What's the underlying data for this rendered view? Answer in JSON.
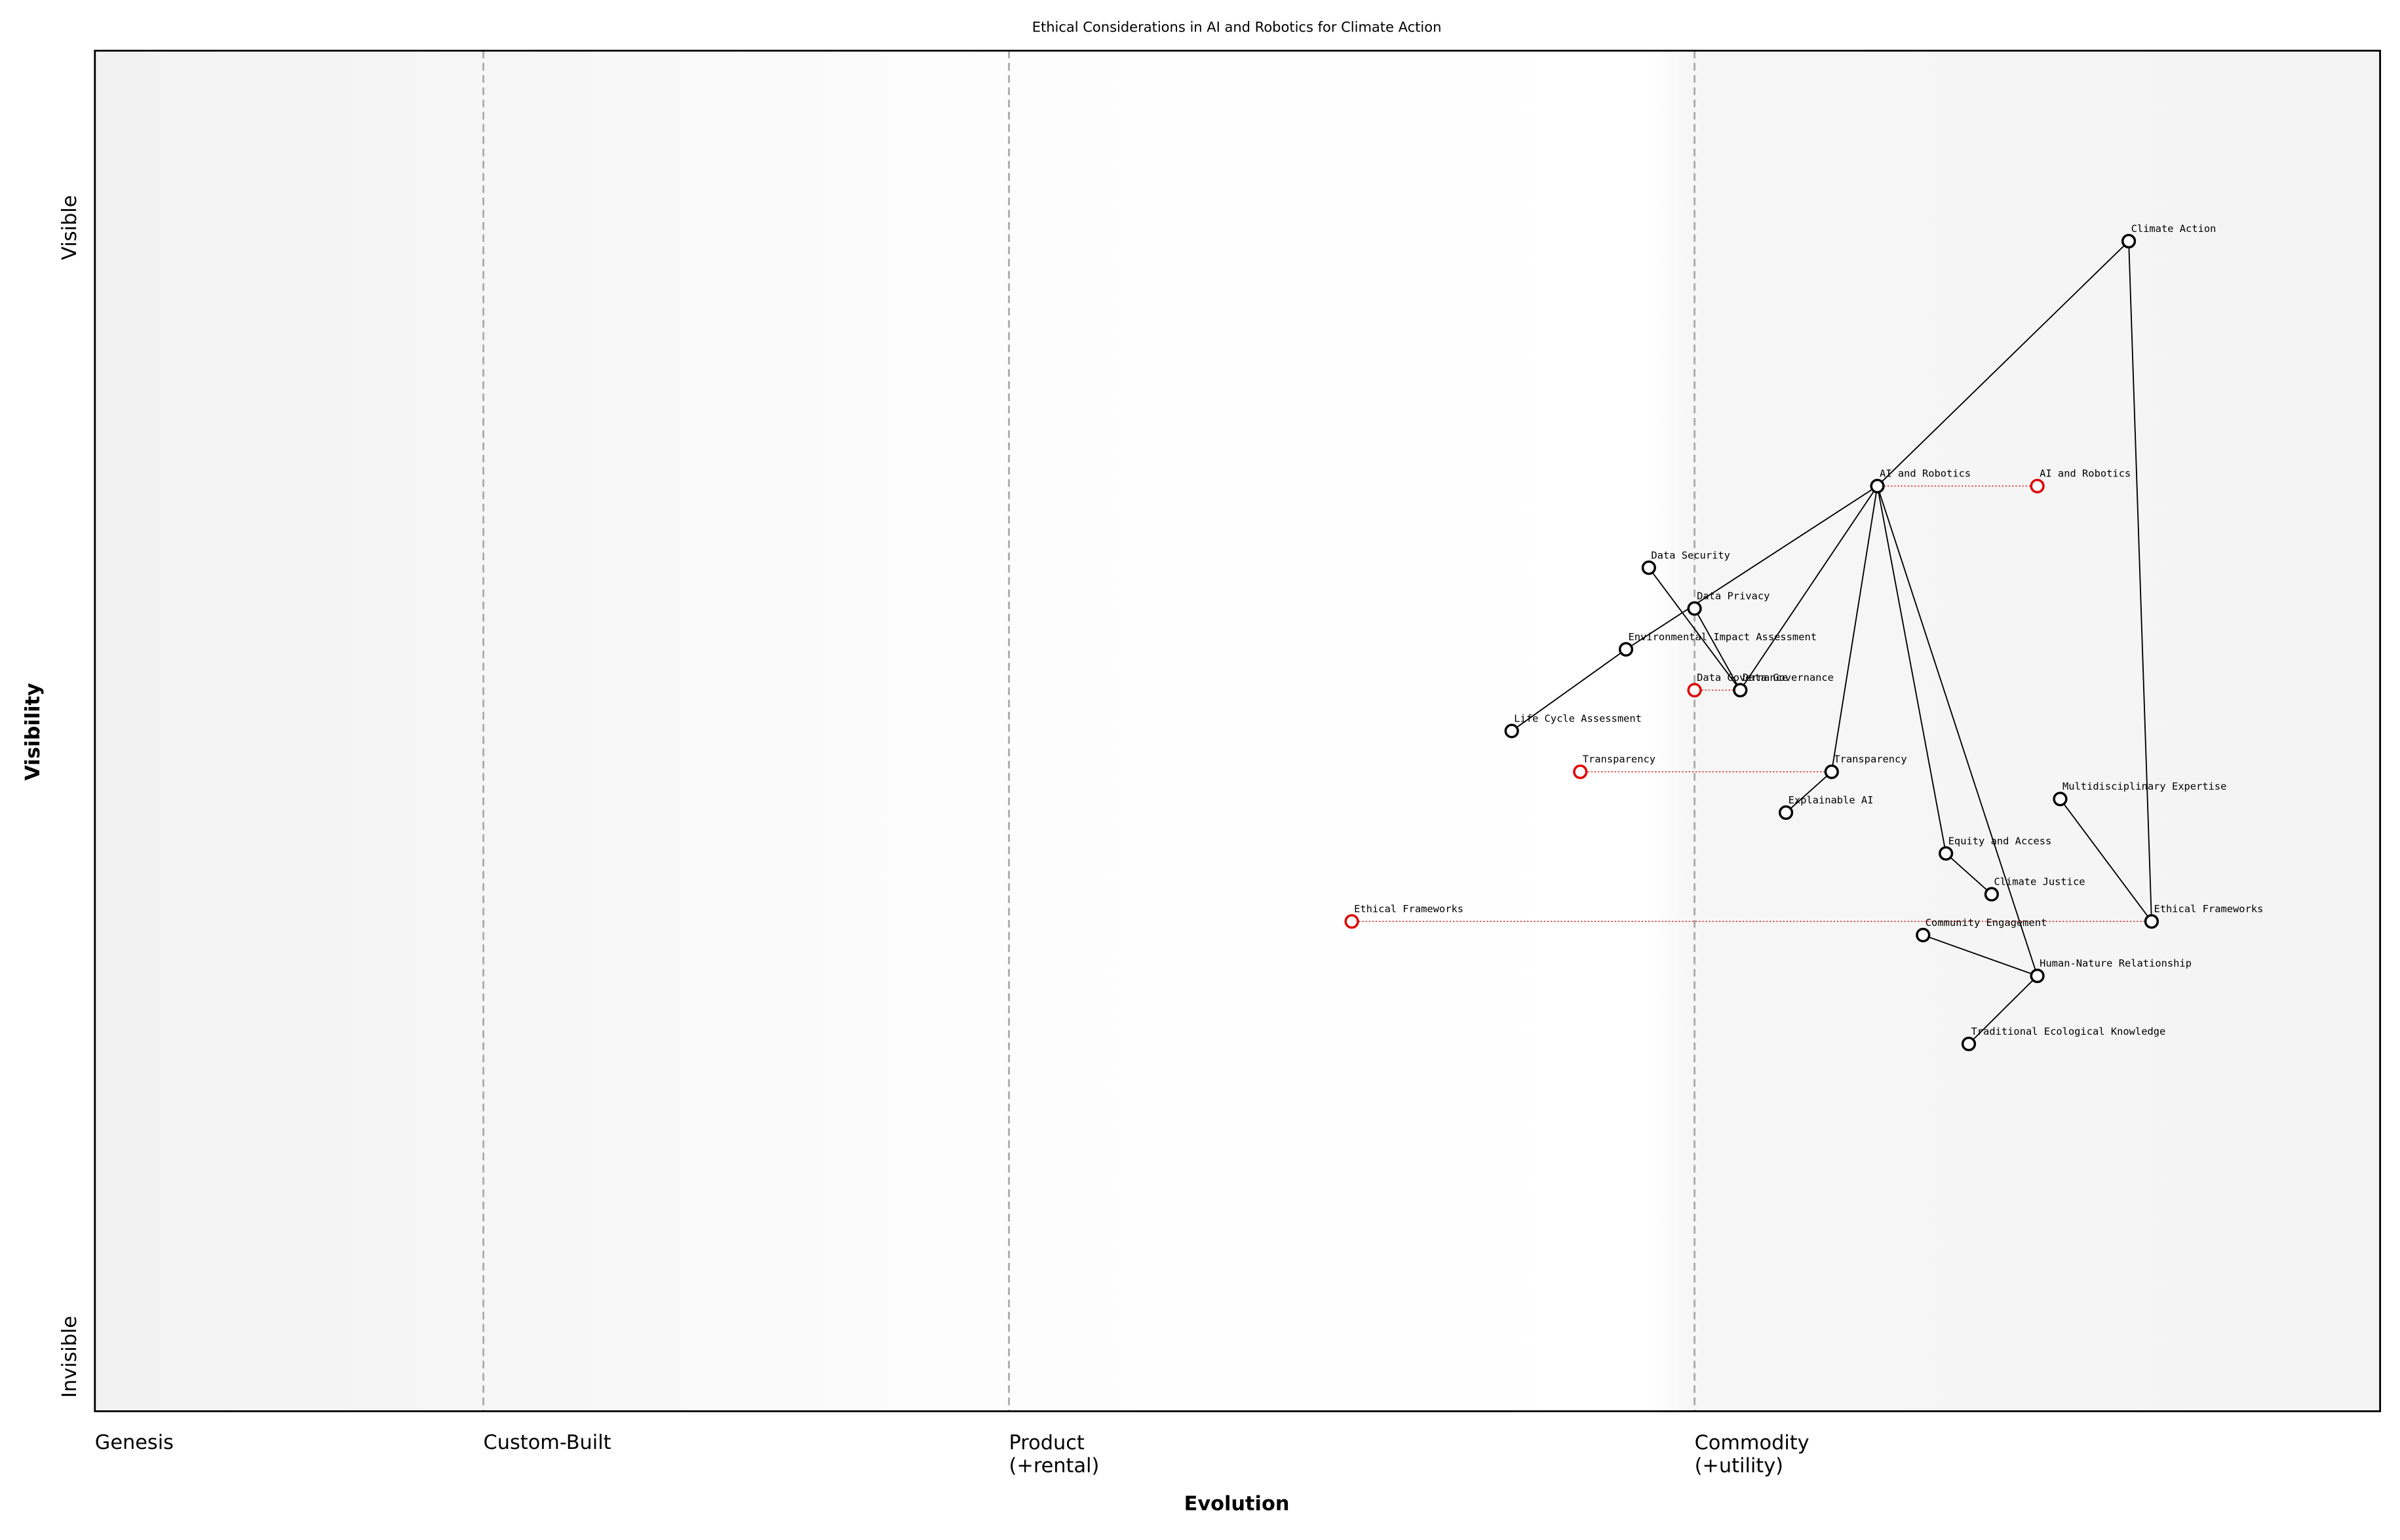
{
  "chart_data": {
    "type": "wardley",
    "title": "Ethical Considerations in AI and Robotics for Climate Action",
    "xlabel": "Evolution",
    "ylabel": "Visibility",
    "xlim": [
      0,
      1
    ],
    "ylim": [
      0,
      1
    ],
    "xticks": [
      {
        "value": 0,
        "label": "Genesis"
      },
      {
        "value": 0.17,
        "label": "Custom-Built"
      },
      {
        "value": 0.4,
        "label": "Product\n(+rental)"
      },
      {
        "value": 0.7,
        "label": "Commodity\n(+utility)"
      }
    ],
    "yticks": [
      {
        "value": 0.04,
        "label": "Invisible"
      },
      {
        "value": 0.87,
        "label": "Visible"
      }
    ],
    "components": [
      {
        "name": "Climate Action",
        "x": 0.89,
        "y": 0.86
      },
      {
        "name": "AI and Robotics",
        "x": 0.78,
        "y": 0.68
      },
      {
        "name": "Data Security",
        "x": 0.68,
        "y": 0.62
      },
      {
        "name": "Data Privacy",
        "x": 0.7,
        "y": 0.59
      },
      {
        "name": "Environmental Impact Assessment",
        "x": 0.67,
        "y": 0.56
      },
      {
        "name": "Data Governance",
        "x": 0.72,
        "y": 0.53
      },
      {
        "name": "Life Cycle Assessment",
        "x": 0.62,
        "y": 0.5
      },
      {
        "name": "Transparency",
        "x": 0.76,
        "y": 0.47
      },
      {
        "name": "Explainable AI",
        "x": 0.74,
        "y": 0.44
      },
      {
        "name": "Multidisciplinary Expertise",
        "x": 0.86,
        "y": 0.45
      },
      {
        "name": "Equity and Access",
        "x": 0.81,
        "y": 0.41
      },
      {
        "name": "Climate Justice",
        "x": 0.83,
        "y": 0.38
      },
      {
        "name": "Ethical Frameworks",
        "x": 0.9,
        "y": 0.36
      },
      {
        "name": "Community Engagement",
        "x": 0.8,
        "y": 0.35
      },
      {
        "name": "Human-Nature Relationship",
        "x": 0.85,
        "y": 0.32
      },
      {
        "name": "Traditional Ecological Knowledge",
        "x": 0.82,
        "y": 0.27
      }
    ],
    "evolutions": [
      {
        "name": "AI and Robotics",
        "x": 0.85,
        "y": 0.68
      },
      {
        "name": "Data Governance",
        "x": 0.7,
        "y": 0.53
      },
      {
        "name": "Transparency",
        "x": 0.65,
        "y": 0.47
      },
      {
        "name": "Ethical Frameworks",
        "x": 0.55,
        "y": 0.36
      }
    ],
    "links": [
      [
        "Climate Action",
        "AI and Robotics"
      ],
      [
        "Climate Action",
        "Ethical Frameworks"
      ],
      [
        "AI and Robotics",
        "Environmental Impact Assessment"
      ],
      [
        "Environmental Impact Assessment",
        "Life Cycle Assessment"
      ],
      [
        "AI and Robotics",
        "Data Governance"
      ],
      [
        "AI and Robotics",
        "Transparency"
      ],
      [
        "AI and Robotics",
        "Equity and Access"
      ],
      [
        "AI and Robotics",
        "Human-Nature Relationship"
      ],
      [
        "Data Security",
        "Data Governance"
      ],
      [
        "Data Privacy",
        "Data Governance"
      ],
      [
        "Transparency",
        "Explainable AI"
      ],
      [
        "Equity and Access",
        "Climate Justice"
      ],
      [
        "Ethical Frameworks",
        "Multidisciplinary Expertise"
      ],
      [
        "Community Engagement",
        "Human-Nature Relationship"
      ],
      [
        "Human-Nature Relationship",
        "Traditional Ecological Knowledge"
      ]
    ]
  }
}
